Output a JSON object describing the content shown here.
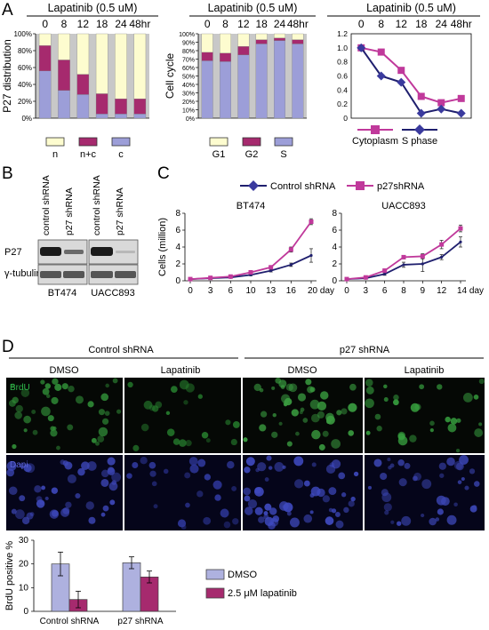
{
  "panels": {
    "A": "A",
    "B": "B",
    "C": "C",
    "D": "D"
  },
  "colors": {
    "n": "#9c9ed8",
    "nc": "#a62a6e",
    "c": "#fdfccf",
    "g1": "#fdfccf",
    "g2": "#a62a6e",
    "s": "#9c9ed8",
    "grey": "#c8c8c8",
    "cyto": "#c0399b",
    "sphase": "#1f1f6e",
    "ctrl": "#1f1f6e",
    "p27": "#c0399b",
    "dmso": "#aeb1df",
    "lap": "#a62a6e"
  },
  "chart_data": [
    {
      "id": "A1",
      "type": "bar",
      "stacked": true,
      "title": "Lapatinib (0.5 uM)",
      "categories": [
        "0",
        "8",
        "12",
        "18",
        "24",
        "48hr"
      ],
      "ylabel": "P27 distribution",
      "yticks": [
        "0%",
        "20%",
        "40%",
        "60%",
        "80%",
        "100%"
      ],
      "ylim": [
        0,
        100
      ],
      "series": [
        {
          "name": "n",
          "values": [
            56,
            33,
            28,
            5,
            5,
            5
          ]
        },
        {
          "name": "n+c",
          "values": [
            30,
            36,
            24,
            24,
            18,
            18
          ]
        },
        {
          "name": "c",
          "values": [
            14,
            31,
            48,
            71,
            77,
            77
          ]
        }
      ]
    },
    {
      "id": "A2",
      "type": "bar",
      "stacked": true,
      "title": "Lapatinib (0.5 uM)",
      "categories": [
        "0",
        "8",
        "12",
        "18",
        "24",
        "48hr"
      ],
      "ylabel": "Cell cycle",
      "yticks": [
        "0%",
        "10%",
        "20%",
        "30%",
        "40%",
        "50%",
        "60%",
        "70%",
        "80%",
        "90%",
        "100%"
      ],
      "ylim": [
        0,
        100
      ],
      "series": [
        {
          "name": "G1",
          "values": [
            68,
            67,
            75,
            88,
            92,
            88
          ]
        },
        {
          "name": "G2",
          "values": [
            10,
            10,
            10,
            5,
            3,
            5
          ]
        },
        {
          "name": "S",
          "values": [
            22,
            23,
            15,
            7,
            5,
            7
          ]
        }
      ]
    },
    {
      "id": "A3",
      "type": "line",
      "title": "Lapatinib (0.5 uM)",
      "categories": [
        "0",
        "8",
        "12",
        "18",
        "24",
        "48hr"
      ],
      "yticks": [
        "0",
        "0.2",
        "0.4",
        "0.6",
        "0.8",
        "1.0",
        "1.2"
      ],
      "ylim": [
        0,
        1.2
      ],
      "series": [
        {
          "name": "Cytoplasm",
          "values": [
            1.0,
            0.94,
            0.68,
            0.31,
            0.22,
            0.28
          ]
        },
        {
          "name": "S phase",
          "values": [
            1.0,
            0.6,
            0.51,
            0.07,
            0.13,
            0.07
          ]
        }
      ]
    },
    {
      "id": "C1",
      "type": "line",
      "title": "BT474",
      "x": [
        "0",
        "3",
        "6",
        "10",
        "13",
        "16",
        "20 day"
      ],
      "ylabel": "Cells (million)",
      "yticks": [
        "0",
        "2",
        "4",
        "6",
        "8"
      ],
      "ylim": [
        0,
        8
      ],
      "series": [
        {
          "name": "Control shRNA",
          "values": [
            0.2,
            0.3,
            0.4,
            0.7,
            1.2,
            1.9,
            3.0
          ],
          "err": [
            0,
            0,
            0.1,
            0.1,
            0.15,
            0.2,
            0.8
          ]
        },
        {
          "name": "p27shRNA",
          "values": [
            0.2,
            0.35,
            0.5,
            1.0,
            1.6,
            3.7,
            7.0
          ],
          "err": [
            0,
            0,
            0.1,
            0.1,
            0.2,
            0.3,
            0.35
          ]
        }
      ]
    },
    {
      "id": "C2",
      "type": "line",
      "title": "UACC893",
      "x": [
        "0",
        "3",
        "6",
        "8",
        "9",
        "12",
        "14 day"
      ],
      "yticks": [
        "0",
        "2",
        "4",
        "6",
        "8"
      ],
      "ylim": [
        0,
        8
      ],
      "series": [
        {
          "name": "Control shRNA",
          "values": [
            0.2,
            0.3,
            0.8,
            1.9,
            2.0,
            2.8,
            4.6
          ],
          "err": [
            0,
            0,
            0.15,
            0.3,
            0.9,
            0.3,
            0.6
          ]
        },
        {
          "name": "p27shRNA",
          "values": [
            0.2,
            0.4,
            1.2,
            2.8,
            2.9,
            4.3,
            6.2
          ],
          "err": [
            0,
            0,
            0.2,
            0.2,
            0.3,
            0.5,
            0.4
          ]
        }
      ]
    },
    {
      "id": "D",
      "type": "bar",
      "categories": [
        "Control shRNA",
        "p27 shRNA"
      ],
      "ylabel": "BrdU positive %",
      "yticks": [
        "0",
        "10",
        "20",
        "30"
      ],
      "ylim": [
        0,
        30
      ],
      "series": [
        {
          "name": "DMSO",
          "values": [
            20,
            20.5
          ],
          "err": [
            5,
            2.5
          ]
        },
        {
          "name": "2.5 μM lapatinib",
          "values": [
            5,
            14.5
          ],
          "err": [
            3.5,
            2.5
          ]
        }
      ]
    }
  ],
  "legends": {
    "a1": [
      "n",
      "n+c",
      "c"
    ],
    "a2": [
      "G1",
      "G2",
      "S"
    ],
    "a3": [
      "Cytoplasm",
      "S phase"
    ],
    "c": [
      "Control shRNA",
      "p27shRNA"
    ],
    "d": [
      "DMSO",
      "2.5 μM lapatinib"
    ]
  },
  "blot": {
    "col_labels": [
      "control shRNA",
      "p27 shRNA",
      "control shRNA",
      "p27 shRNA"
    ],
    "row_labels": [
      "P27",
      "γ-tubulin"
    ],
    "cell_lines": [
      "BT474",
      "UACC893"
    ]
  },
  "micro": {
    "group_headers": [
      "Control shRNA",
      "p27 shRNA"
    ],
    "col_labels": [
      "DMSO",
      "Lapatinib",
      "DMSO",
      "Lapatinib"
    ],
    "row_labels": [
      "BrdU",
      "Dapi"
    ]
  }
}
